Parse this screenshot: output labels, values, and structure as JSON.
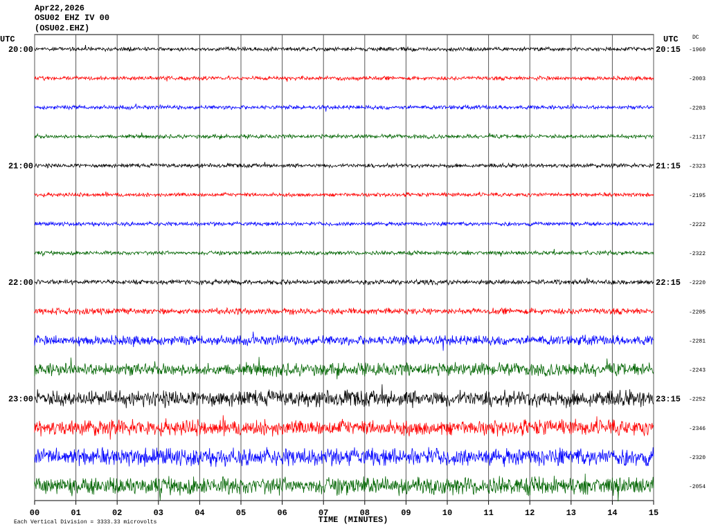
{
  "header": {
    "date": "Apr22,2026",
    "channel": "OSU02 EHZ IV 00",
    "station": "(OSU02.EHZ)"
  },
  "left_axis": {
    "label": "UTC",
    "times": [
      "20:00",
      "21:00",
      "22:00",
      "23:00"
    ]
  },
  "right_axis": {
    "label": "UTC",
    "times": [
      "20:15",
      "21:15",
      "22:15",
      "23:15"
    ]
  },
  "dc": {
    "label": "DC",
    "values": [
      "-1960",
      "-2003",
      "-2203",
      "-2117",
      "-2323",
      "-2195",
      "-2222",
      "-2322",
      "-2220",
      "-2205",
      "-2281",
      "-2243",
      "-2252",
      "-2346",
      "-2320",
      "-2054"
    ]
  },
  "x_axis": {
    "label": "TIME (MINUTES)",
    "ticks": [
      "00",
      "01",
      "02",
      "03",
      "04",
      "05",
      "06",
      "07",
      "08",
      "09",
      "10",
      "11",
      "12",
      "13",
      "14",
      "15"
    ]
  },
  "footer": "Each Vertical Division = 3333.33 microvolts"
}
